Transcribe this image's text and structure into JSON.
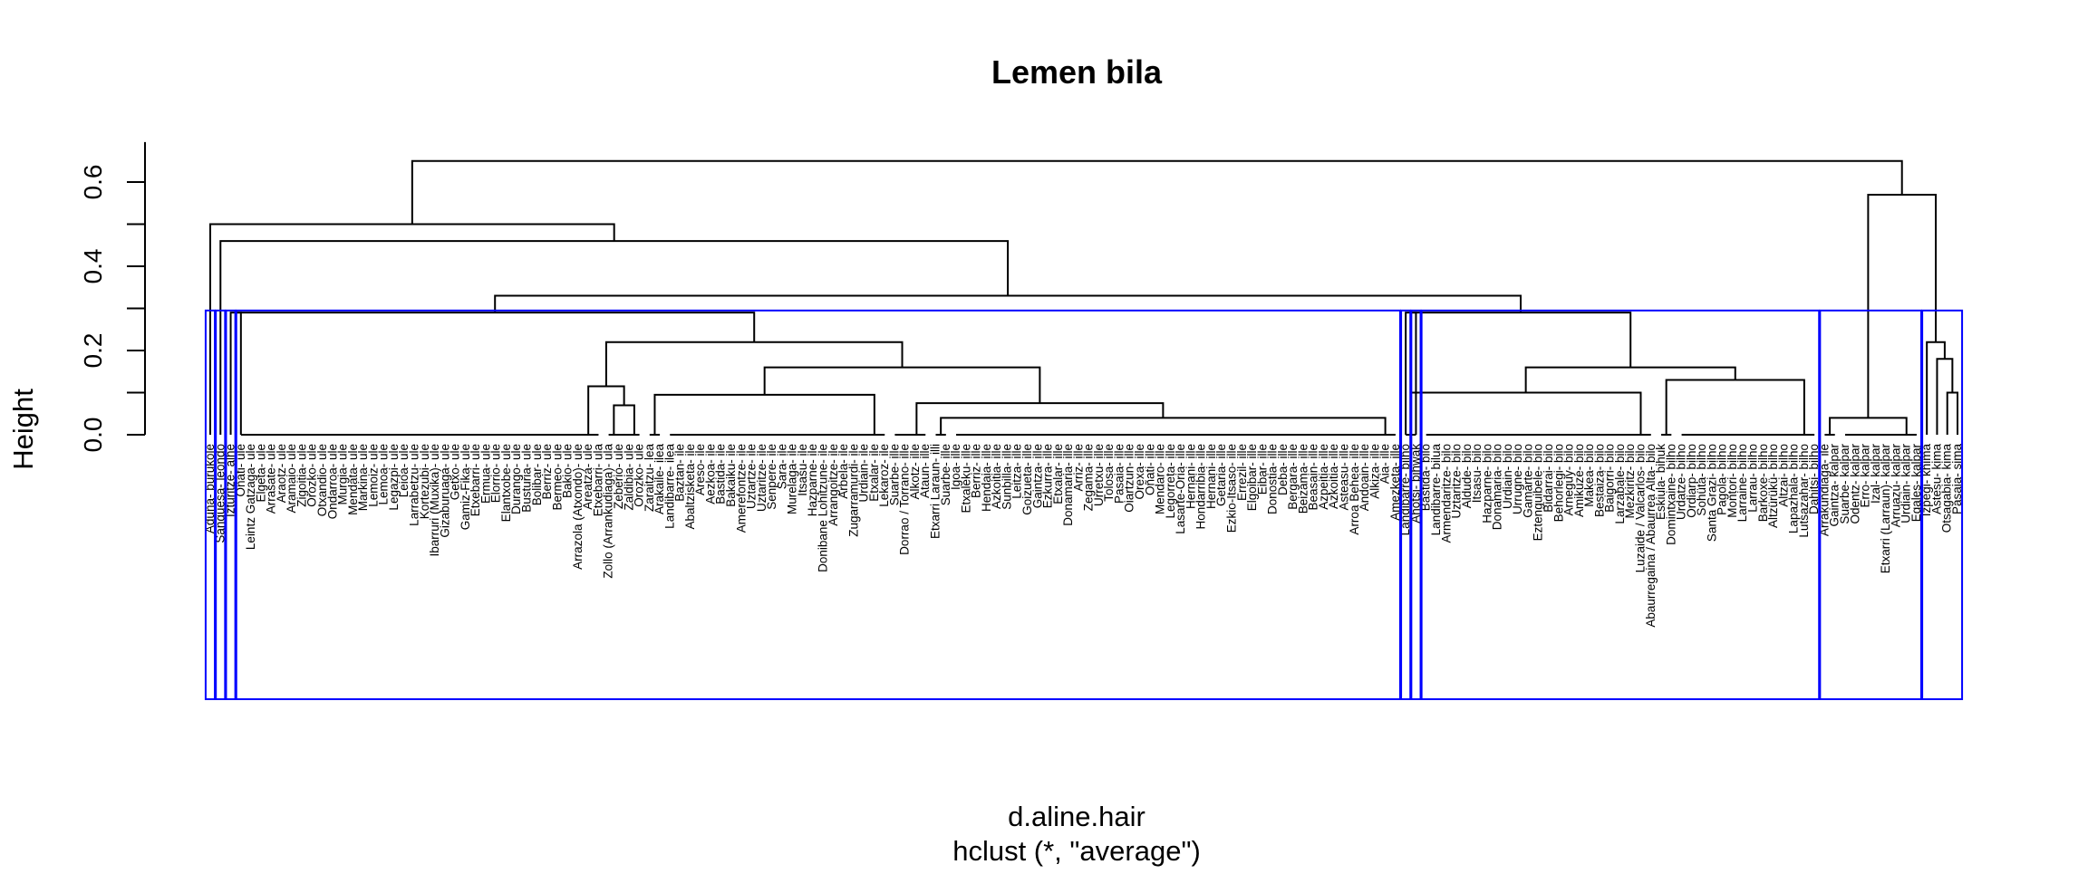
{
  "chart_data": {
    "type": "dendrogram",
    "title": "Lemen bila",
    "xlabel": "d.aline.hair",
    "sub": "hclust (*, \"average\")",
    "ylabel": "Height",
    "ylim": [
      0,
      0.65
    ],
    "yticks": [
      "0.0",
      "0.2",
      "0.4",
      "0.6"
    ],
    "leaves": [
      "Aduna- burukolé",
      "Sangüesa- leondo",
      "Izturitze- alhe",
      "Oñati- ule",
      "Leintz Gatzaga- ule",
      "Elgeta- ule",
      "Arrasate- ule",
      "Araotz- ule",
      "Aramaio- ule",
      "Zigoitia- ule",
      "Orozko- ule",
      "Otxandio- ule",
      "Ondarroa- ule",
      "Murgia- ule",
      "Mendata- ule",
      "Markina- ule",
      "Lemoiz- ule",
      "Lemoa- ule",
      "Legazpi- ule",
      "Leioa- ule",
      "Larrabetzu- ule",
      "Kortezubi- ule",
      "Ibarruri (Muxika)- ule",
      "Gizaburuaga- ule",
      "Getxo- ule",
      "Gamiz-Fika- ule",
      "Etxebarri- ule",
      "Ermua- ule",
      "Elorrio- ule",
      "Elantxobe- ule",
      "Durango- ule",
      "Busturia- ule",
      "Bolibar- ule",
      "Berriz- ule",
      "Bermeo- ule",
      "Bakio- ule",
      "Arrazola (Atxondo)- ule",
      "Areatza- ule",
      "Etxebarri- ula",
      "Zollo (Arrankudiaga)- ula",
      "Zeberio- ule",
      "Zaldibia- ule",
      "Orozko- ule",
      "Zaraitzu- lea",
      "Arakaile- ilea",
      "Landibarre- ilea",
      "Baztan- ile",
      "Abaltzisketa- ile",
      "Areso- ile",
      "Aezkoa- ile",
      "Bastida- ile",
      "Bakaiku- ile",
      "Amerefontze- ile",
      "Uztartze- ile",
      "Uztaritze- ile",
      "Senpere- ile",
      "Sara- ile",
      "Murelaga- ile",
      "Itsasu- ile",
      "Hazparne- ile",
      "Donibane Lohitzune- ile",
      "Arrangoitze- ile",
      "Arbela- ile",
      "Zugarramurdi- ile",
      "Urdiain- ile",
      "Etxalar- ile",
      "Lekaroz- ile",
      "Suarbe- ille",
      "Dorrao / Torrano- ille",
      "Alkotz- ille",
      "Ataun- ille",
      "Etxarri Laraun- illi",
      "Suarbe- ille",
      "Igoa- ille",
      "Etxaleku- ille",
      "Berriz- ille",
      "Hendaia- ille",
      "Azkoitia- ille",
      "Sunbilla- ille",
      "Leitza- ille",
      "Goizueta- ille",
      "Gaintza- ille",
      "Ezkurra- ille",
      "Etxalar- ille",
      "Donamaria- ille",
      "Arriz- ille",
      "Zegama- ille",
      "Urretxu- ille",
      "Tolosa- ille",
      "Pasaia- ille",
      "Oiartzun- ille",
      "Orexa- ille",
      "Oñati- ille",
      "Mendaro- ille",
      "Legorreta- ille",
      "Lasarte-Oria- ille",
      "Hernani- ille",
      "Hondarribia- ille",
      "Hernani- ille",
      "Getaria- ille",
      "Ezkio-Itsaso- ille",
      "Errezil- ille",
      "Elgoibar- ille",
      "Eibar- ille",
      "Donostia- ille",
      "Deba- ille",
      "Bergara- ille",
      "Beizama- ille",
      "Beasain- ille",
      "Azpeitia- ille",
      "Azkoitia- ille",
      "Asteasu- ille",
      "Arroa Behea- ille",
      "Andoain- ille",
      "Alkiza- ille",
      "Aia- ille",
      "Amezketa- ille",
      "Landibarre- bilho",
      "Ahotsi- bihwak",
      "Bastida- bilo",
      "Landibarre- bilua",
      "Armendaritze- bilo",
      "Uztaritze- bilo",
      "Aldude- bilo",
      "Itsasu- bilo",
      "Hazparne- bilo",
      "Donamaria- bilo",
      "Urdiain- bilo",
      "Urrugne- bilo",
      "Gamarte- bilo",
      "Eztenguibele- bilo",
      "Bidarrai- bilo",
      "Behorlegi- bilo",
      "Arneguy- bilo",
      "Amikuze- bilo",
      "Makea- bilo",
      "Bestaiza- bilo",
      "Baigorri- bilo",
      "Larzabale- bilo",
      "Mezkiritz- bilo",
      "Luzaide / Valcarlos- bilo",
      "Abaurregaina / Abaurrea Alta- bilo",
      "Eskiula- bihuk",
      "Domintxaine- bilho",
      "Urdatze- bilho",
      "Ordiarp- bilho",
      "Sohüta- bilho",
      "Santa Grazi- bilho",
      "Pagola- bilho",
      "Montori- bilho",
      "Larraine- bilho",
      "Larrau- bilho",
      "Barkoxe- bilho",
      "Altzürükü- bilho",
      "Altzai- bilho",
      "Lapazhala- bilho",
      "Lutsazahar- bilho",
      "Dahitsi- bilho",
      "Arrakundiaga- ile",
      "Gaintza- kalpar",
      "Suarbe- kalpar",
      "Odentz- kalpar",
      "Erro- kalpar",
      "Izal- kalpar",
      "Etxarri (Larraun)- kalpar",
      "Arruazu- kalpar",
      "Urdiain- kalpar",
      "Egales- kalpar",
      "Izpegi- khima",
      "Astesu- kima",
      "Otsagabia- kima",
      "Pasaia- sima"
    ]
  }
}
